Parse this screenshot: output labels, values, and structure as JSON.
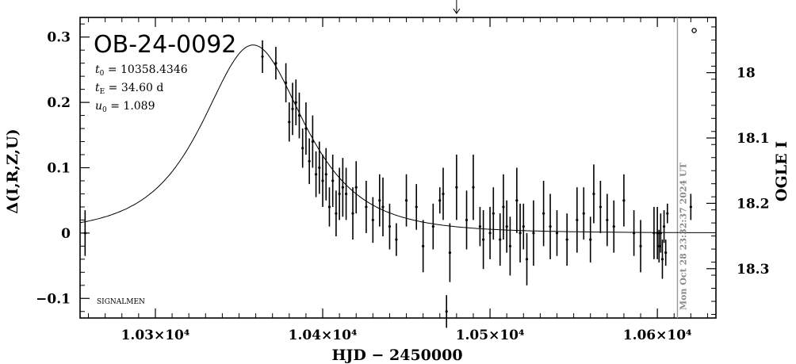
{
  "chart_data": {
    "type": "scatter",
    "title": "OB-24-0092",
    "params": {
      "t0": "10358.4346",
      "tE": "34.60 d",
      "u0": "1.089"
    },
    "param_symbols": {
      "t0": "t",
      "t0_sub": "0",
      "tE": "t",
      "tE_sub": "E",
      "u0": "u",
      "u0_sub": "0"
    },
    "xlabel": "HJD − 2450000",
    "ylabel": "Δ(I,R,Z,U)",
    "ylabel_right": "OGLE I",
    "xlim": [
      10255,
      10635
    ],
    "ylim": [
      -0.13,
      0.33
    ],
    "right_axis": {
      "reference_mag": 18.2455,
      "ticks": [
        "18",
        "18.1",
        "18.2",
        "18.3"
      ],
      "values": [
        18.0,
        18.1,
        18.2,
        18.3
      ]
    },
    "x_ticks": [
      "1.03×10⁴",
      "1.04×10⁴",
      "1.05×10⁴",
      "1.06×10⁴"
    ],
    "x_tick_values": [
      10300,
      10400,
      10500,
      10600
    ],
    "y_ticks": [
      "0.3",
      "0.2",
      "0.1",
      "0",
      "−0.1"
    ],
    "y_tick_values": [
      0.3,
      0.2,
      0.1,
      0.0,
      -0.1
    ],
    "legend_text": "SIGNALMEN",
    "timestamp": "Mon Oct 28 23:32:37 2024 UT",
    "current_date_x": 10612,
    "arrow_x": 10480,
    "model": {
      "type": "paczynski",
      "t0": 10358.4346,
      "tE": 34.6,
      "u0": 1.089,
      "baseline_offset": 0.0
    },
    "series": [
      {
        "x": [
          10258,
          10364,
          10372,
          10378,
          10380,
          10382,
          10384,
          10386,
          10388,
          10390,
          10392,
          10394,
          10396,
          10398,
          10400,
          10402,
          10404,
          10406,
          10408,
          10410,
          10412,
          10414,
          10418,
          10420,
          10426,
          10430,
          10434,
          10436,
          10440,
          10444,
          10450,
          10456,
          10460,
          10466,
          10470,
          10472,
          10474,
          10476,
          10480,
          10486,
          10490,
          10494,
          10496,
          10500,
          10502,
          10506,
          10508,
          10510,
          10512,
          10516,
          10518,
          10520,
          10522,
          10526,
          10532,
          10536,
          10540,
          10546,
          10552,
          10556,
          10560,
          10562,
          10566,
          10570,
          10574,
          10580,
          10586,
          10590,
          10598,
          10600,
          10601,
          10602,
          10603,
          10604,
          10605,
          10606,
          10620
        ],
        "y": [
          0.0,
          0.27,
          0.26,
          0.23,
          0.17,
          0.19,
          0.2,
          0.18,
          0.13,
          0.16,
          0.11,
          0.14,
          0.09,
          0.1,
          0.08,
          0.09,
          0.04,
          0.08,
          0.03,
          0.06,
          0.07,
          0.06,
          0.03,
          0.07,
          0.04,
          0.02,
          0.05,
          0.04,
          0.01,
          -0.01,
          0.05,
          0.04,
          -0.02,
          0.01,
          0.05,
          0.06,
          -0.12,
          -0.03,
          0.07,
          0.02,
          0.07,
          0.01,
          -0.01,
          0.0,
          0.03,
          -0.01,
          0.04,
          0.01,
          -0.02,
          0.05,
          0.0,
          0.01,
          -0.04,
          0.0,
          0.03,
          0.01,
          0.0,
          -0.01,
          0.02,
          0.03,
          -0.01,
          0.06,
          0.04,
          0.02,
          0.01,
          0.05,
          0.0,
          -0.02,
          0.0,
          0.0,
          -0.02,
          0.0,
          -0.04,
          0.01,
          -0.03,
          0.03,
          0.04
        ],
        "err": [
          0.035,
          0.025,
          0.025,
          0.03,
          0.03,
          0.04,
          0.035,
          0.035,
          0.03,
          0.04,
          0.035,
          0.04,
          0.035,
          0.04,
          0.04,
          0.04,
          0.03,
          0.04,
          0.035,
          0.04,
          0.045,
          0.04,
          0.04,
          0.04,
          0.04,
          0.035,
          0.04,
          0.045,
          0.035,
          0.025,
          0.04,
          0.035,
          0.04,
          0.035,
          0.02,
          0.04,
          0.025,
          0.045,
          0.05,
          0.045,
          0.05,
          0.03,
          0.045,
          0.04,
          0.04,
          0.04,
          0.05,
          0.04,
          0.045,
          0.05,
          0.045,
          0.035,
          0.04,
          0.05,
          0.05,
          0.05,
          0.035,
          0.04,
          0.05,
          0.04,
          0.035,
          0.045,
          0.04,
          0.04,
          0.04,
          0.04,
          0.035,
          0.04,
          0.04,
          0.04,
          0.025,
          0.03,
          0.03,
          0.025,
          0.02,
          0.015,
          0.02
        ]
      }
    ],
    "marker": {
      "x": 10622,
      "y": 0.31
    }
  }
}
